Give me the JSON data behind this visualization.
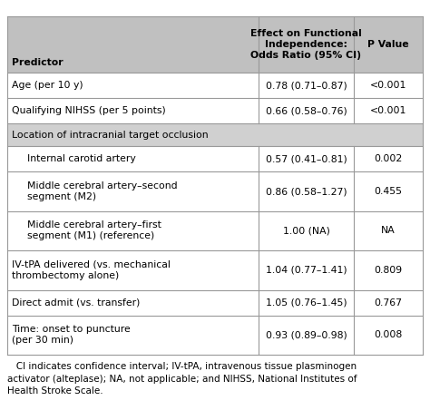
{
  "col_headers": [
    "Predictor",
    "Effect on Functional\nIndependence:\nOdds Ratio (95% CI)",
    "P Value"
  ],
  "header_bg": "#c0c0c0",
  "section_bg": "#d0d0d0",
  "rows": [
    {
      "predictor": "Age (per 10 y)",
      "or_ci": "0.78 (0.71–0.87)",
      "pval": "<0.001",
      "type": "data",
      "indent": false
    },
    {
      "predictor": "Qualifying NIHSS (per 5 points)",
      "or_ci": "0.66 (0.58–0.76)",
      "pval": "<0.001",
      "type": "data",
      "indent": false
    },
    {
      "predictor": "Location of intracranial target occlusion",
      "or_ci": "",
      "pval": "",
      "type": "section",
      "indent": false
    },
    {
      "predictor": "Internal carotid artery",
      "or_ci": "0.57 (0.41–0.81)",
      "pval": "0.002",
      "type": "data",
      "indent": true
    },
    {
      "predictor": "Middle cerebral artery–second\nsegment (M2)",
      "or_ci": "0.86 (0.58–1.27)",
      "pval": "0.455",
      "type": "data",
      "indent": true
    },
    {
      "predictor": "Middle cerebral artery–first\nsegment (M1) (reference)",
      "or_ci": "1.00 (NA)",
      "pval": "NA",
      "type": "data",
      "indent": true
    },
    {
      "predictor": "IV-tPA delivered (vs. mechanical\nthrombectomy alone)",
      "or_ci": "1.04 (0.77–1.41)",
      "pval": "0.809",
      "type": "data",
      "indent": false
    },
    {
      "predictor": "Direct admit (vs. transfer)",
      "or_ci": "1.05 (0.76–1.45)",
      "pval": "0.767",
      "type": "data",
      "indent": false
    },
    {
      "predictor": "Time: onset to puncture\n(per 30 min)",
      "or_ci": "0.93 (0.89–0.98)",
      "pval": "0.008",
      "type": "data",
      "indent": false
    }
  ],
  "footnote": "   CI indicates confidence interval; IV-tPA, intravenous tissue plasminogen\nactivator (alteplase); NA, not applicable; and NIHSS, National Institutes of\nHealth Stroke Scale.",
  "font_size": 7.8,
  "header_font_size": 7.8,
  "footnote_font_size": 7.5
}
